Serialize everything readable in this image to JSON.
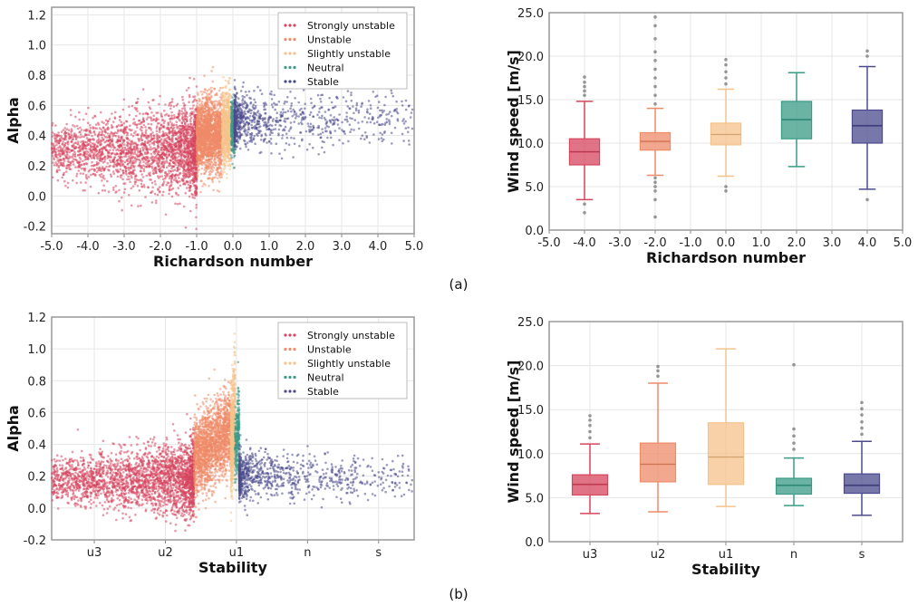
{
  "colors": {
    "strongly_unstable": "#d6465e",
    "unstable": "#ee8b68",
    "slightly_unstable": "#f5c28b",
    "neutral": "#3a9b86",
    "stable": "#4a4a8c"
  },
  "captions": [
    "(a)",
    "(b)"
  ],
  "chart_data": [
    {
      "type": "scatter",
      "title": "",
      "xlabel": "Richardson  number",
      "ylabel": "Alpha",
      "xlim": [
        -5.0,
        5.0
      ],
      "ylim": [
        -0.25,
        1.25
      ],
      "xticks": [
        "-5.0",
        "-4.0",
        "-3.0",
        "-2.0",
        "-1.0",
        "0.0",
        "1.0",
        "2.0",
        "3.0",
        "4.0",
        "5.0"
      ],
      "yticks": [
        "-0.2",
        "0.0",
        "0.2",
        "0.4",
        "0.6",
        "0.8",
        "1.0",
        "1.2"
      ],
      "xtick_values": [
        -5,
        -4,
        -3,
        -2,
        -1,
        0,
        1,
        2,
        3,
        4,
        5
      ],
      "ytick_values": [
        -0.2,
        0,
        0.2,
        0.4,
        0.6,
        0.8,
        1.0,
        1.2
      ],
      "legend": [
        "Strongly unstable",
        "Unstable",
        "Slightly unstable",
        "Neutral",
        "Stable"
      ],
      "legend_position": "top-right",
      "series": [
        {
          "name": "Strongly unstable",
          "x_range": [
            -5.0,
            -1.0
          ],
          "y_center": 0.3,
          "y_spread": 0.2,
          "n": 2600
        },
        {
          "name": "Unstable",
          "x_range": [
            -1.0,
            -0.3
          ],
          "y_center": 0.4,
          "y_spread": 0.2,
          "n": 1800
        },
        {
          "name": "Slightly unstable",
          "x_range": [
            -0.3,
            -0.05
          ],
          "y_center": 0.45,
          "y_spread": 0.2,
          "n": 700
        },
        {
          "name": "Neutral",
          "x_range": [
            -0.05,
            0.05
          ],
          "y_center": 0.45,
          "y_spread": 0.15,
          "n": 250
        },
        {
          "name": "Stable",
          "x_range": [
            0.05,
            5.0
          ],
          "y_center": 0.5,
          "y_spread": 0.15,
          "n": 900
        }
      ]
    },
    {
      "type": "box",
      "title": "",
      "xlabel": "Richardson  number",
      "ylabel": "Wind speed [m/s]",
      "xlim": [
        -5.0,
        5.0
      ],
      "ylim": [
        0,
        25
      ],
      "xticks": [
        "-5.0",
        "-4.0",
        "-3.0",
        "-2.0",
        "-1.0",
        "0.0",
        "1.0",
        "2.0",
        "3.0",
        "4.0",
        "5.0"
      ],
      "yticks": [
        "0.0",
        "5.0",
        "10.0",
        "15.0",
        "20.0",
        "25.0"
      ],
      "xtick_values": [
        -5,
        -4,
        -3,
        -2,
        -1,
        0,
        1,
        2,
        3,
        4,
        5
      ],
      "ytick_values": [
        0,
        5,
        10,
        15,
        20,
        25
      ],
      "boxes": [
        {
          "name": "Strongly unstable",
          "x": -4.0,
          "whisker_low": 3.5,
          "q1": 7.5,
          "median": 9.0,
          "q3": 10.5,
          "whisker_high": 14.8,
          "outliers_low": [
            2.0,
            3.0
          ],
          "outliers_high": [
            15.5,
            16.0,
            16.5,
            17.0,
            17.6
          ]
        },
        {
          "name": "Unstable",
          "x": -2.0,
          "whisker_low": 6.3,
          "q1": 9.2,
          "median": 10.2,
          "q3": 11.2,
          "whisker_high": 14.0,
          "outliers_low": [
            1.5,
            3.5,
            4.5,
            5.0,
            5.5,
            6.0
          ],
          "outliers_high": [
            14.5,
            15.5,
            16.5,
            17.5,
            18.5,
            19.5,
            20.5,
            22.0,
            23.5,
            24.5
          ]
        },
        {
          "name": "Slightly unstable",
          "x": 0.0,
          "whisker_low": 6.2,
          "q1": 9.8,
          "median": 11.0,
          "q3": 12.3,
          "whisker_high": 16.2,
          "outliers_low": [
            4.5,
            5.0
          ],
          "outliers_high": [
            16.8,
            17.5,
            18.2,
            19.0,
            19.6
          ]
        },
        {
          "name": "Neutral",
          "x": 2.0,
          "whisker_low": 7.3,
          "q1": 10.5,
          "median": 12.7,
          "q3": 14.8,
          "whisker_high": 18.1,
          "outliers_low": [],
          "outliers_high": []
        },
        {
          "name": "Stable",
          "x": 4.0,
          "whisker_low": 4.7,
          "q1": 10.0,
          "median": 12.0,
          "q3": 13.8,
          "whisker_high": 18.8,
          "outliers_low": [
            3.5
          ],
          "outliers_high": [
            20.0,
            20.6
          ]
        }
      ]
    },
    {
      "type": "scatter",
      "title": "",
      "xlabel": "Stability",
      "ylabel": "Alpha",
      "ylim": [
        -0.2,
        1.2
      ],
      "xticks": [
        "u3",
        "u2",
        "u1",
        "n",
        "s"
      ],
      "yticks": [
        "-0.2",
        "0.0",
        "0.2",
        "0.4",
        "0.6",
        "0.8",
        "1.0",
        "1.2"
      ],
      "xtick_values": [
        1,
        2,
        3,
        4,
        5
      ],
      "ytick_values": [
        -0.2,
        0,
        0.2,
        0.4,
        0.6,
        0.8,
        1.0,
        1.2
      ],
      "xlim": [
        0.4,
        5.5
      ],
      "legend": [
        "Strongly unstable",
        "Unstable",
        "Slightly unstable",
        "Neutral",
        "Stable"
      ],
      "legend_position": "top-right",
      "series": [
        {
          "name": "Strongly unstable",
          "x_range": [
            0.4,
            2.4
          ],
          "y_center": 0.18,
          "y_spread": 0.15,
          "n": 2600
        },
        {
          "name": "Unstable",
          "x_range": [
            2.4,
            2.92
          ],
          "y_center": 0.3,
          "y_spread": 0.22,
          "n": 1800
        },
        {
          "name": "Slightly unstable",
          "x_range": [
            2.92,
            2.98
          ],
          "y_center": 0.4,
          "y_spread": 0.3,
          "n": 700
        },
        {
          "name": "Neutral",
          "x_range": [
            2.98,
            3.04
          ],
          "y_center": 0.35,
          "y_spread": 0.2,
          "n": 250
        },
        {
          "name": "Stable",
          "x_range": [
            3.04,
            5.5
          ],
          "y_center": 0.2,
          "y_spread": 0.12,
          "n": 900
        }
      ]
    },
    {
      "type": "box",
      "title": "",
      "xlabel": "Stability",
      "ylabel": "Wind speed [m/s]",
      "ylim": [
        0,
        25
      ],
      "xticks": [
        "u3",
        "u2",
        "u1",
        "n",
        "s"
      ],
      "yticks": [
        "0.0",
        "5.0",
        "10.0",
        "15.0",
        "20.0",
        "25.0"
      ],
      "xtick_values": [
        1,
        2,
        3,
        4,
        5
      ],
      "ytick_values": [
        0,
        5,
        10,
        15,
        20,
        25
      ],
      "xlim": [
        0.4,
        5.6
      ],
      "boxes": [
        {
          "name": "u3",
          "x": 1,
          "whisker_low": 3.2,
          "q1": 5.3,
          "median": 6.5,
          "q3": 7.6,
          "whisker_high": 11.1,
          "outliers_low": [],
          "outliers_high": [
            11.8,
            12.5,
            13.2,
            13.8,
            14.3
          ]
        },
        {
          "name": "u2",
          "x": 2,
          "whisker_low": 3.4,
          "q1": 6.8,
          "median": 8.8,
          "q3": 11.2,
          "whisker_high": 18.0,
          "outliers_low": [],
          "outliers_high": [
            18.8,
            19.4,
            19.9
          ]
        },
        {
          "name": "u1",
          "x": 3,
          "whisker_low": 4.0,
          "q1": 6.5,
          "median": 9.6,
          "q3": 13.5,
          "whisker_high": 21.9,
          "outliers_low": [],
          "outliers_high": []
        },
        {
          "name": "n",
          "x": 4,
          "whisker_low": 4.1,
          "q1": 5.4,
          "median": 6.4,
          "q3": 7.2,
          "whisker_high": 9.5,
          "outliers_low": [],
          "outliers_high": [
            10.5,
            11.2,
            12.0,
            12.8,
            20.1
          ]
        },
        {
          "name": "s",
          "x": 5,
          "whisker_low": 3.0,
          "q1": 5.5,
          "median": 6.4,
          "q3": 7.7,
          "whisker_high": 11.4,
          "outliers_low": [],
          "outliers_high": [
            12.2,
            12.9,
            13.6,
            14.4,
            15.1,
            15.8
          ]
        }
      ]
    }
  ]
}
